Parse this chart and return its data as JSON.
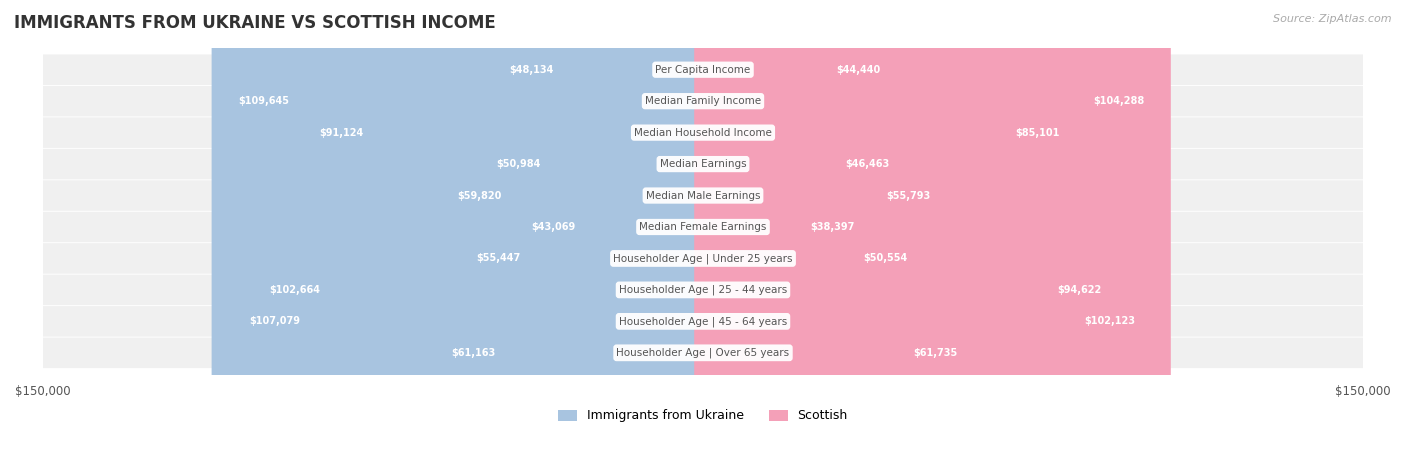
{
  "title": "IMMIGRANTS FROM UKRAINE VS SCOTTISH INCOME",
  "source": "Source: ZipAtlas.com",
  "categories": [
    "Per Capita Income",
    "Median Family Income",
    "Median Household Income",
    "Median Earnings",
    "Median Male Earnings",
    "Median Female Earnings",
    "Householder Age | Under 25 years",
    "Householder Age | 25 - 44 years",
    "Householder Age | 45 - 64 years",
    "Householder Age | Over 65 years"
  ],
  "ukraine_values": [
    48134,
    109645,
    91124,
    50984,
    59820,
    43069,
    55447,
    102664,
    107079,
    61163
  ],
  "scottish_values": [
    44440,
    104288,
    85101,
    46463,
    55793,
    38397,
    50554,
    94622,
    102123,
    61735
  ],
  "ukraine_labels": [
    "$48,134",
    "$109,645",
    "$91,124",
    "$50,984",
    "$59,820",
    "$43,069",
    "$55,447",
    "$102,664",
    "$107,079",
    "$61,163"
  ],
  "scottish_labels": [
    "$44,440",
    "$104,288",
    "$85,101",
    "$46,463",
    "$55,793",
    "$38,397",
    "$50,554",
    "$94,622",
    "$102,123",
    "$61,735"
  ],
  "ukraine_color": "#a8c4e0",
  "scottish_color": "#f4a0b8",
  "ukraine_label_color_inside": "#ffffff",
  "ukraine_label_color_outside": "#888888",
  "scottish_label_color_inside": "#ffffff",
  "scottish_label_color_outside": "#888888",
  "max_value": 150000,
  "bar_height": 0.55,
  "row_bg_color": "#f2f2f2",
  "row_bg_color_alt": "#e8e8e8",
  "category_box_color": "#ffffff",
  "category_text_color": "#555555",
  "title_color": "#333333",
  "legend_ukraine_color": "#a8c4e0",
  "legend_scottish_color": "#f4a0b8",
  "ukraine_inside_threshold": 30000,
  "scottish_inside_threshold": 30000
}
